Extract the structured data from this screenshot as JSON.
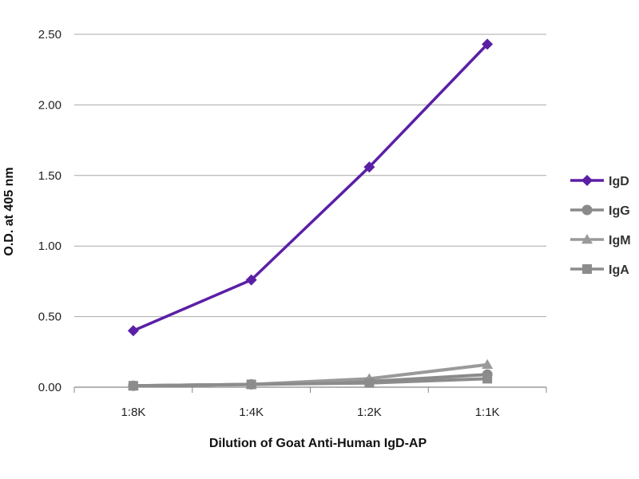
{
  "chart_data": {
    "type": "line",
    "title": "",
    "xlabel": "Dilution of Goat Anti-Human IgD-AP",
    "ylabel": "O.D. at 405 nm",
    "categories": [
      "1:8K",
      "1:4K",
      "1:2K",
      "1:1K"
    ],
    "ylim": [
      0,
      2.5
    ],
    "yticks": [
      "0.00",
      "0.50",
      "1.00",
      "1.50",
      "2.00",
      "2.50"
    ],
    "grid": "horizontal",
    "legend_position": "right",
    "series": [
      {
        "name": "IgD",
        "values": [
          0.4,
          0.76,
          1.56,
          2.43
        ],
        "color": "#5b1fa6",
        "marker": "diamond"
      },
      {
        "name": "IgG",
        "values": [
          0.01,
          0.02,
          0.04,
          0.09
        ],
        "color": "#8a8a8a",
        "marker": "circle"
      },
      {
        "name": "IgM",
        "values": [
          0.01,
          0.02,
          0.06,
          0.16
        ],
        "color": "#9a9a9a",
        "marker": "triangle"
      },
      {
        "name": "IgA",
        "values": [
          0.01,
          0.02,
          0.03,
          0.06
        ],
        "color": "#8c8c8c",
        "marker": "square"
      }
    ]
  }
}
